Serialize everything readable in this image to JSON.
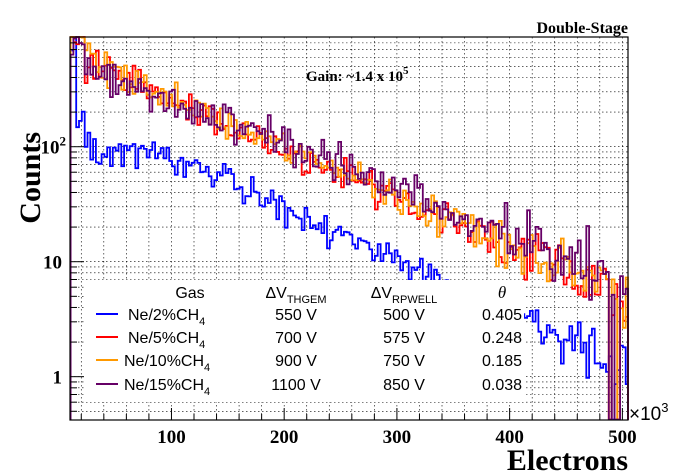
{
  "chart_data": {
    "type": "histogram",
    "title": "Double-Stage",
    "annotation": {
      "text": "Gain: ~1.4 x 10",
      "exponent": "5"
    },
    "xlabel": "Electrons",
    "ylabel": "Counts",
    "x_multiplier": {
      "base": "×10",
      "exponent": "3"
    },
    "xlim": [
      10,
      505
    ],
    "ylim": [
      0.42,
      900
    ],
    "y_scale": "log",
    "grid": true,
    "x_ticks": [
      100,
      200,
      300,
      400,
      500
    ],
    "y_ticks": [
      {
        "value": 1,
        "label": "1",
        "sup": ""
      },
      {
        "value": 10,
        "label": "10",
        "sup": ""
      },
      {
        "value": 100,
        "label": "10",
        "sup": "2"
      }
    ],
    "legend": {
      "position": "bottom-left",
      "header": {
        "gas": "Gas",
        "dv1": "ΔV",
        "dv1_sub": "THGEM",
        "dv2": "ΔV",
        "dv2_sub": "RPWELL",
        "theta": "θ"
      },
      "rows": [
        {
          "gas": "Ne/2%CH",
          "gas_sub": "4",
          "dv1": "550 V",
          "dv2": "500 V",
          "theta": "0.405"
        },
        {
          "gas": "Ne/5%CH",
          "gas_sub": "4",
          "dv1": "700 V",
          "dv2": "575 V",
          "theta": "0.248"
        },
        {
          "gas": "Ne/10%CH",
          "gas_sub": "4",
          "dv1": "900 V",
          "dv2": "750 V",
          "theta": "0.185"
        },
        {
          "gas": "Ne/15%CH",
          "gas_sub": "4",
          "dv1": "1100 V",
          "dv2": "850 V",
          "theta": "0.038"
        }
      ]
    },
    "bin_width": 2.5,
    "series": [
      {
        "name": "Ne/2%CH4",
        "color": "#0000ff",
        "amplitude": 190,
        "slope": 0.0105,
        "rise_tau": 0.0,
        "knee": 110,
        "seed": 11,
        "noise": 0.16
      },
      {
        "name": "Ne/5%CH4",
        "color": "#ff0000",
        "amplitude": 560,
        "slope": 0.0098,
        "rise_tau": 0.0,
        "knee": 0,
        "seed": 23,
        "noise": 0.17
      },
      {
        "name": "Ne/10%CH4",
        "color": "#ff9900",
        "amplitude": 560,
        "slope": 0.0097,
        "rise_tau": 0.0,
        "knee": 0,
        "seed": 37,
        "noise": 0.19
      },
      {
        "name": "Ne/15%CH4",
        "color": "#660066",
        "amplitude": 540,
        "slope": 0.0092,
        "rise_tau": 0.0,
        "knee": 0,
        "seed": 51,
        "noise": 0.2
      }
    ]
  }
}
